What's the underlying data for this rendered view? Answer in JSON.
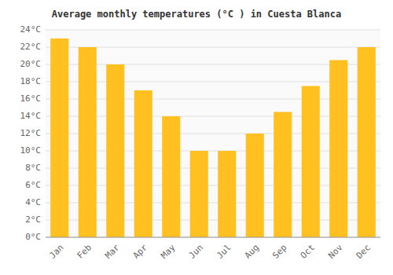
{
  "chart_data": {
    "type": "bar",
    "title": "Average monthly temperatures (°C ) in Cuesta Blanca",
    "categories": [
      "Jan",
      "Feb",
      "Mar",
      "Apr",
      "May",
      "Jun",
      "Jul",
      "Aug",
      "Sep",
      "Oct",
      "Nov",
      "Dec"
    ],
    "values": [
      23,
      22,
      20,
      17,
      14,
      10,
      10,
      12,
      14.5,
      17.5,
      20.5,
      22
    ],
    "color": "#FFC020",
    "ylim": [
      0,
      24
    ],
    "yticks": [
      {
        "value": 0,
        "label": "0°C"
      },
      {
        "value": 2,
        "label": "2°C"
      },
      {
        "value": 4,
        "label": "4°C"
      },
      {
        "value": 6,
        "label": "6°C"
      },
      {
        "value": 8,
        "label": "8°C"
      },
      {
        "value": 10,
        "label": "10°C"
      },
      {
        "value": 12,
        "label": "12°C"
      },
      {
        "value": 14,
        "label": "14°C"
      },
      {
        "value": 16,
        "label": "16°C"
      },
      {
        "value": 18,
        "label": "18°C"
      },
      {
        "value": 20,
        "label": "20°C"
      },
      {
        "value": 22,
        "label": "22°C"
      },
      {
        "value": 24,
        "label": "24°C"
      }
    ],
    "grid": true
  }
}
